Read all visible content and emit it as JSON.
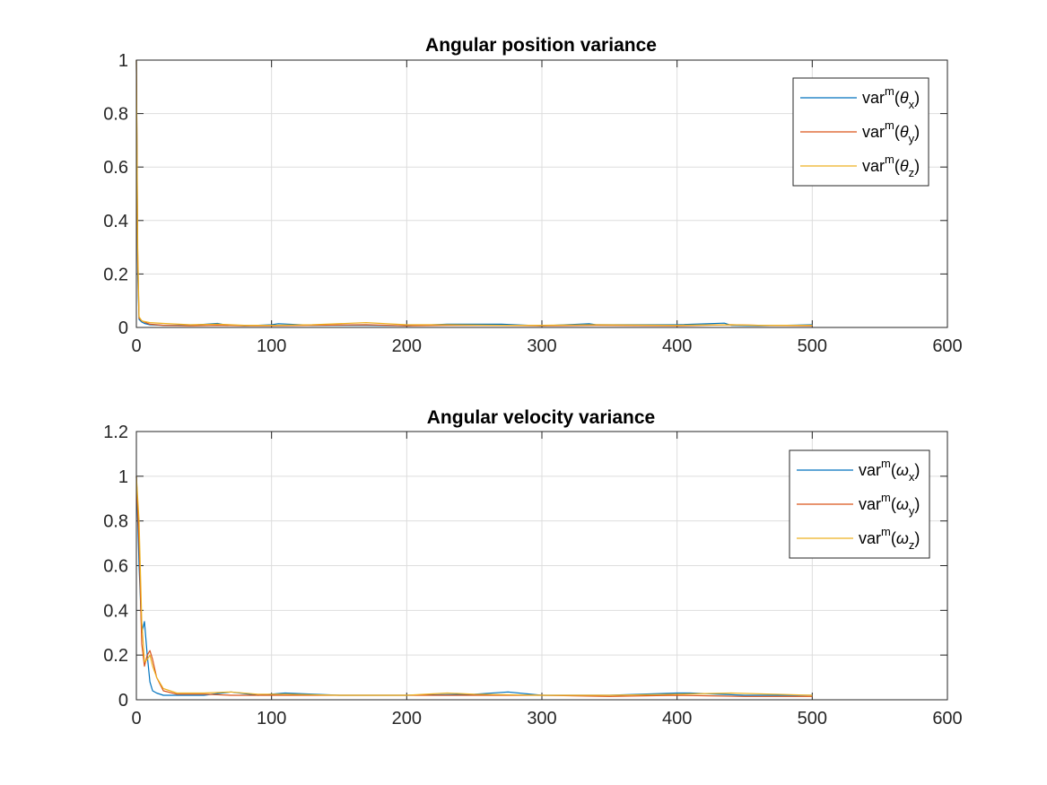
{
  "chart_data": [
    {
      "type": "line",
      "title": "Angular position variance",
      "xlim": [
        0,
        600
      ],
      "ylim": [
        0,
        1
      ],
      "xticks": [
        "0",
        "100",
        "200",
        "300",
        "400",
        "500",
        "600"
      ],
      "yticks": [
        "0",
        "0.2",
        "0.4",
        "0.6",
        "0.8",
        "1"
      ],
      "grid": true,
      "legend_position": "top-right",
      "legend": [
        {
          "var": "var",
          "sup": "m",
          "open": "(",
          "sym": "θ",
          "sub": "x",
          "close": ")"
        },
        {
          "var": "var",
          "sup": "m",
          "open": "(",
          "sym": "θ",
          "sub": "y",
          "close": ")"
        },
        {
          "var": "var",
          "sup": "m",
          "open": "(",
          "sym": "θ",
          "sub": "z",
          "close": ")"
        }
      ],
      "series": [
        {
          "color": "#0072BD",
          "x": [
            0,
            1,
            2,
            4,
            6,
            10,
            20,
            40,
            60,
            65,
            80,
            100,
            105,
            130,
            170,
            200,
            230,
            270,
            300,
            335,
            340,
            400,
            435,
            440,
            460,
            500
          ],
          "y": [
            1.0,
            0.2,
            0.03,
            0.02,
            0.015,
            0.01,
            0.008,
            0.008,
            0.015,
            0.01,
            0.006,
            0.01,
            0.014,
            0.008,
            0.008,
            0.006,
            0.012,
            0.012,
            0.006,
            0.014,
            0.01,
            0.01,
            0.016,
            0.008,
            0.006,
            0.01
          ]
        },
        {
          "color": "#D95319",
          "x": [
            0,
            1,
            2,
            4,
            6,
            10,
            20,
            40,
            60,
            80,
            100,
            130,
            170,
            200,
            230,
            270,
            300,
            340,
            400,
            440,
            460,
            500
          ],
          "y": [
            1.0,
            0.25,
            0.035,
            0.025,
            0.02,
            0.012,
            0.008,
            0.006,
            0.008,
            0.006,
            0.006,
            0.008,
            0.01,
            0.006,
            0.008,
            0.008,
            0.006,
            0.008,
            0.006,
            0.01,
            0.008,
            0.006
          ]
        },
        {
          "color": "#EDB120",
          "x": [
            0,
            1,
            2,
            4,
            6,
            10,
            20,
            40,
            60,
            80,
            100,
            130,
            170,
            200,
            230,
            270,
            300,
            340,
            400,
            440,
            460,
            500
          ],
          "y": [
            1.0,
            0.3,
            0.04,
            0.025,
            0.022,
            0.018,
            0.015,
            0.01,
            0.012,
            0.008,
            0.008,
            0.01,
            0.018,
            0.01,
            0.01,
            0.008,
            0.008,
            0.01,
            0.008,
            0.01,
            0.008,
            0.008
          ]
        }
      ]
    },
    {
      "type": "line",
      "title": "Angular velocity variance",
      "xlim": [
        0,
        600
      ],
      "ylim": [
        0,
        1.2
      ],
      "xticks": [
        "0",
        "100",
        "200",
        "300",
        "400",
        "500",
        "600"
      ],
      "yticks": [
        "0",
        "0.2",
        "0.4",
        "0.6",
        "0.8",
        "1",
        "1.2"
      ],
      "grid": true,
      "legend_position": "top-right",
      "legend": [
        {
          "var": "var",
          "sup": "m",
          "open": "(",
          "sym": "ω",
          "sub": "x",
          "close": ")"
        },
        {
          "var": "var",
          "sup": "m",
          "open": "(",
          "sym": "ω",
          "sub": "y",
          "close": ")"
        },
        {
          "var": "var",
          "sup": "m",
          "open": "(",
          "sym": "ω",
          "sub": "z",
          "close": ")"
        }
      ],
      "series": [
        {
          "color": "#0072BD",
          "x": [
            0,
            2,
            4,
            6,
            8,
            10,
            12,
            15,
            20,
            30,
            50,
            70,
            90,
            110,
            150,
            200,
            250,
            275,
            300,
            350,
            400,
            410,
            450,
            500
          ],
          "y": [
            1.0,
            0.6,
            0.3,
            0.35,
            0.2,
            0.08,
            0.04,
            0.03,
            0.02,
            0.02,
            0.02,
            0.035,
            0.02,
            0.03,
            0.02,
            0.02,
            0.025,
            0.035,
            0.02,
            0.02,
            0.03,
            0.03,
            0.02,
            0.02
          ]
        },
        {
          "color": "#D95319",
          "x": [
            0,
            2,
            4,
            6,
            8,
            10,
            12,
            15,
            20,
            30,
            50,
            70,
            90,
            110,
            150,
            200,
            250,
            275,
            300,
            350,
            400,
            450,
            500
          ],
          "y": [
            1.0,
            0.7,
            0.25,
            0.15,
            0.2,
            0.22,
            0.18,
            0.1,
            0.04,
            0.025,
            0.025,
            0.02,
            0.02,
            0.02,
            0.02,
            0.02,
            0.02,
            0.02,
            0.02,
            0.015,
            0.02,
            0.015,
            0.015
          ]
        },
        {
          "color": "#EDB120",
          "x": [
            0,
            2,
            4,
            6,
            8,
            10,
            12,
            15,
            20,
            30,
            50,
            70,
            90,
            110,
            150,
            200,
            230,
            250,
            300,
            350,
            400,
            440,
            500
          ],
          "y": [
            1.0,
            0.8,
            0.35,
            0.17,
            0.18,
            0.2,
            0.15,
            0.1,
            0.05,
            0.03,
            0.03,
            0.035,
            0.025,
            0.025,
            0.02,
            0.02,
            0.03,
            0.025,
            0.02,
            0.02,
            0.025,
            0.03,
            0.02
          ]
        }
      ]
    }
  ]
}
